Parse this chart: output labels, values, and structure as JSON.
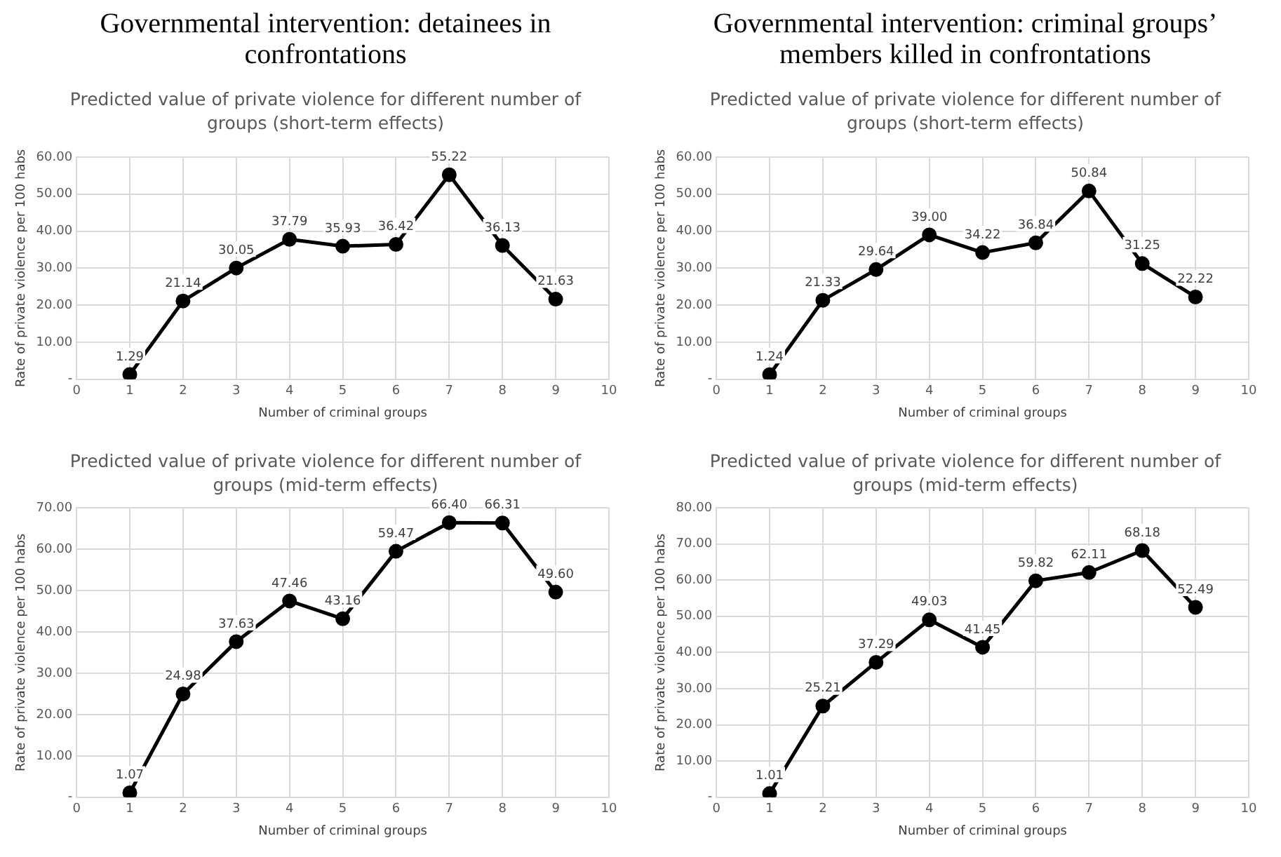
{
  "chart_data": [
    {
      "type": "line",
      "title": "Governmental intervention: detainees in confrontations",
      "subtitle": "Predicted value of private violence for different number of groups (short-term effects)",
      "xlabel": "Number of criminal groups",
      "ylabel": "Rate of private violence per 100 habs",
      "x": [
        1,
        2,
        3,
        4,
        5,
        6,
        7,
        8,
        9
      ],
      "series": [
        {
          "color": "#000000",
          "values": [
            1.29,
            21.14,
            30.05,
            37.79,
            35.93,
            36.42,
            55.22,
            36.13,
            21.63
          ],
          "value_labels": [
            "1.29",
            "21.14",
            "30.05",
            "37.79",
            "35.93",
            "36.42",
            "55.22",
            "36.13",
            "21.63"
          ]
        }
      ],
      "xlim": [
        0,
        10
      ],
      "xticks": [
        0,
        1,
        2,
        3,
        4,
        5,
        6,
        7,
        8,
        9,
        10
      ],
      "ylim": [
        0,
        60
      ],
      "yticks": [
        {
          "value": 0,
          "label": "-"
        },
        {
          "value": 10,
          "label": "10.00"
        },
        {
          "value": 20,
          "label": "20.00"
        },
        {
          "value": 30,
          "label": "30.00"
        },
        {
          "value": 40,
          "label": "40.00"
        },
        {
          "value": 50,
          "label": "50.00"
        },
        {
          "value": 60,
          "label": "60.00"
        }
      ],
      "grid": true,
      "marker": "circle",
      "line_style": "solid"
    },
    {
      "type": "line",
      "title": "Governmental intervention: criminal groups’ members killed in confrontations",
      "subtitle": "Predicted value of private violence for different number of groups (short-term effects)",
      "xlabel": "Number of criminal groups",
      "ylabel": "Rate of private violence per 100 habs",
      "x": [
        1,
        2,
        3,
        4,
        5,
        6,
        7,
        8,
        9
      ],
      "series": [
        {
          "color": "#000000",
          "values": [
            1.24,
            21.33,
            29.64,
            39.0,
            34.22,
            36.84,
            50.84,
            31.25,
            22.22
          ],
          "value_labels": [
            "1.24",
            "21.33",
            "29.64",
            "39.00",
            "34.22",
            "36.84",
            "50.84",
            "31.25",
            "22.22"
          ]
        }
      ],
      "xlim": [
        0,
        10
      ],
      "xticks": [
        0,
        1,
        2,
        3,
        4,
        5,
        6,
        7,
        8,
        9,
        10
      ],
      "ylim": [
        0,
        60
      ],
      "yticks": [
        {
          "value": 0,
          "label": "-"
        },
        {
          "value": 10,
          "label": "10.00"
        },
        {
          "value": 20,
          "label": "20.00"
        },
        {
          "value": 30,
          "label": "30.00"
        },
        {
          "value": 40,
          "label": "40.00"
        },
        {
          "value": 50,
          "label": "50.00"
        },
        {
          "value": 60,
          "label": "60.00"
        }
      ],
      "grid": true,
      "marker": "circle",
      "line_style": "solid"
    },
    {
      "type": "line",
      "title": "Predicted value of private violence for different number of groups (mid-term effects)",
      "xlabel": "Number of criminal groups",
      "ylabel": "Rate of private violence per 100 habs",
      "x": [
        1,
        2,
        3,
        4,
        5,
        6,
        7,
        8,
        9
      ],
      "series": [
        {
          "color": "#000000",
          "values": [
            1.07,
            24.98,
            37.63,
            47.46,
            43.16,
            59.47,
            66.4,
            66.31,
            49.6
          ],
          "value_labels": [
            "1.07",
            "24.98",
            "37.63",
            "47.46",
            "43.16",
            "59.47",
            "66.40",
            "66.31",
            "49.60"
          ]
        }
      ],
      "xlim": [
        0,
        10
      ],
      "xticks": [
        0,
        1,
        2,
        3,
        4,
        5,
        6,
        7,
        8,
        9,
        10
      ],
      "ylim": [
        0,
        70
      ],
      "yticks": [
        {
          "value": 0,
          "label": "-"
        },
        {
          "value": 10,
          "label": "10.00"
        },
        {
          "value": 20,
          "label": "20.00"
        },
        {
          "value": 30,
          "label": "30.00"
        },
        {
          "value": 40,
          "label": "40.00"
        },
        {
          "value": 50,
          "label": "50.00"
        },
        {
          "value": 60,
          "label": "60.00"
        },
        {
          "value": 70,
          "label": "70.00"
        }
      ],
      "grid": true,
      "marker": "circle",
      "line_style": "solid"
    },
    {
      "type": "line",
      "title": "Predicted value of private violence for different number of groups (mid-term effects)",
      "xlabel": "Number of criminal groups",
      "ylabel": "Rate of private violence per 100 habs",
      "x": [
        1,
        2,
        3,
        4,
        5,
        6,
        7,
        8,
        9
      ],
      "series": [
        {
          "color": "#000000",
          "values": [
            1.01,
            25.21,
            37.29,
            49.03,
            41.45,
            59.82,
            62.11,
            68.18,
            52.49
          ],
          "value_labels": [
            "1.01",
            "25.21",
            "37.29",
            "49.03",
            "41.45",
            "59.82",
            "62.11",
            "68.18",
            "52.49"
          ]
        }
      ],
      "xlim": [
        0,
        10
      ],
      "xticks": [
        0,
        1,
        2,
        3,
        4,
        5,
        6,
        7,
        8,
        9,
        10
      ],
      "ylim": [
        0,
        80
      ],
      "yticks": [
        {
          "value": 0,
          "label": "-"
        },
        {
          "value": 10,
          "label": "10.00"
        },
        {
          "value": 20,
          "label": "20.00"
        },
        {
          "value": 30,
          "label": "30.00"
        },
        {
          "value": 40,
          "label": "40.00"
        },
        {
          "value": 50,
          "label": "50.00"
        },
        {
          "value": 60,
          "label": "60.00"
        },
        {
          "value": 70,
          "label": "70.00"
        },
        {
          "value": 80,
          "label": "80.00"
        }
      ],
      "grid": true,
      "marker": "circle",
      "line_style": "solid"
    }
  ]
}
